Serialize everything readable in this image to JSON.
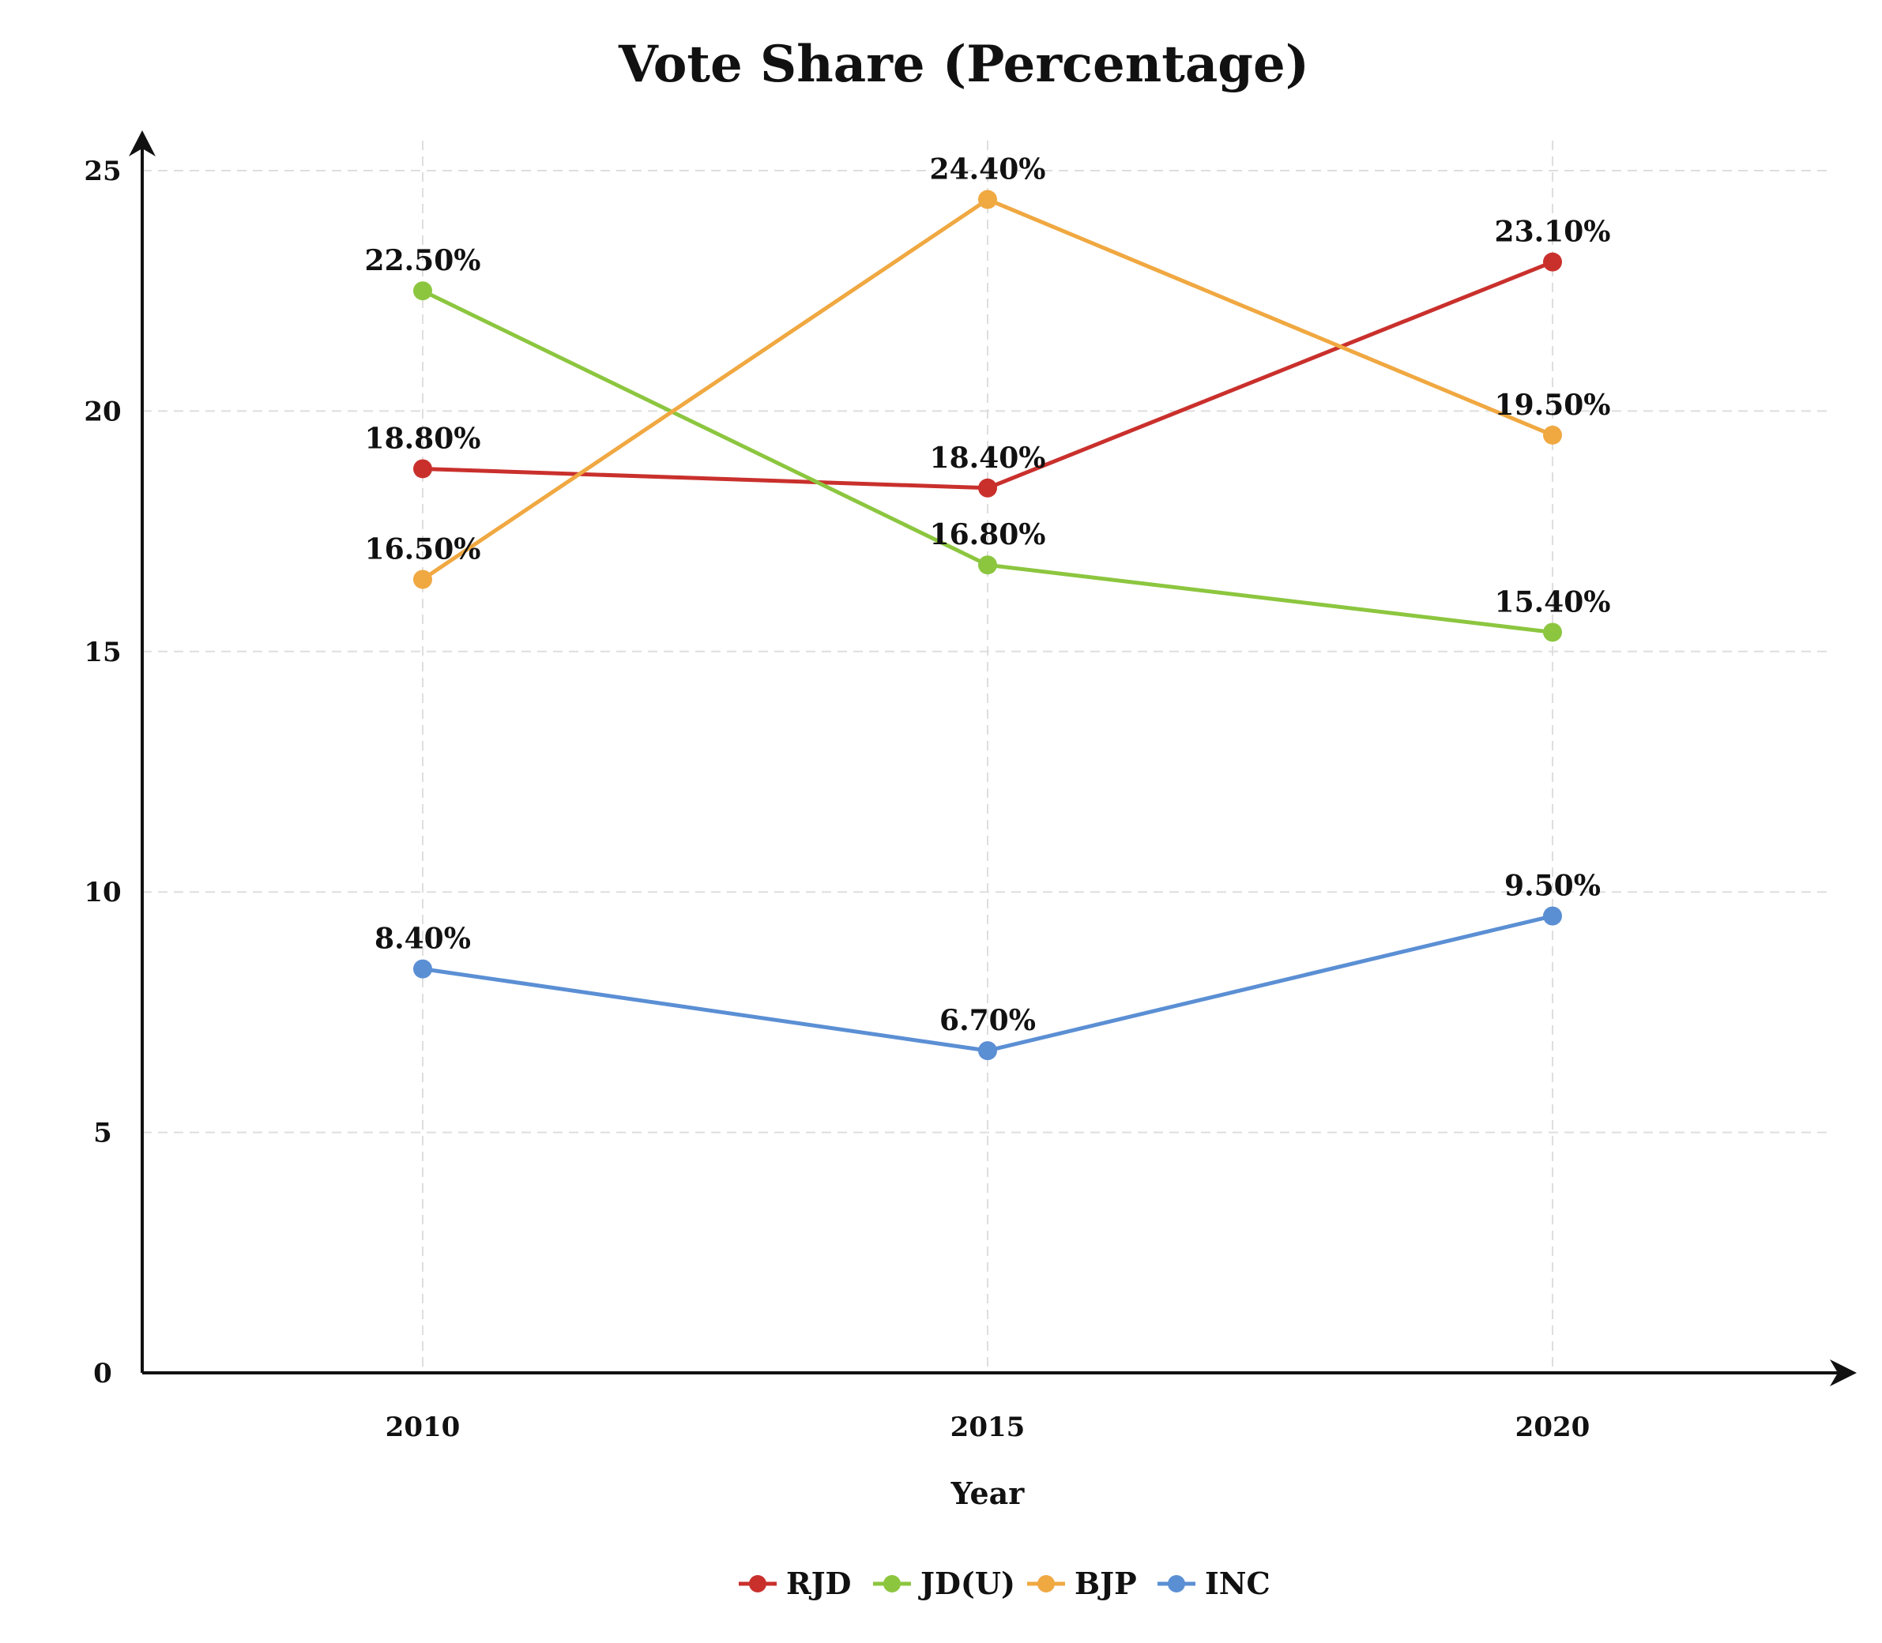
{
  "chart_data": {
    "type": "line",
    "title": "Vote Share (Percentage)",
    "xlabel": "Year",
    "ylabel": "",
    "categories": [
      "2010",
      "2015",
      "2020"
    ],
    "ylim": [
      0,
      25
    ],
    "yticks": [
      0,
      5,
      10,
      15,
      20,
      25
    ],
    "grid": true,
    "legend_position": "bottom",
    "series": [
      {
        "name": "RJD",
        "color": "#c9302c",
        "values": [
          18.8,
          18.4,
          23.1
        ],
        "labels": [
          "18.80%",
          "18.40%",
          "23.10%"
        ]
      },
      {
        "name": "JD(U)",
        "color": "#8cc63f",
        "values": [
          22.5,
          16.8,
          15.4
        ],
        "labels": [
          "22.50%",
          "16.80%",
          "15.40%"
        ]
      },
      {
        "name": "BJP",
        "color": "#f0a841",
        "values": [
          16.5,
          24.4,
          19.5
        ],
        "labels": [
          "16.50%",
          "24.40%",
          "19.50%"
        ]
      },
      {
        "name": "INC",
        "color": "#5b8fd4",
        "values": [
          8.4,
          6.7,
          9.5
        ],
        "labels": [
          "8.40%",
          "6.70%",
          "9.50%"
        ]
      }
    ]
  }
}
